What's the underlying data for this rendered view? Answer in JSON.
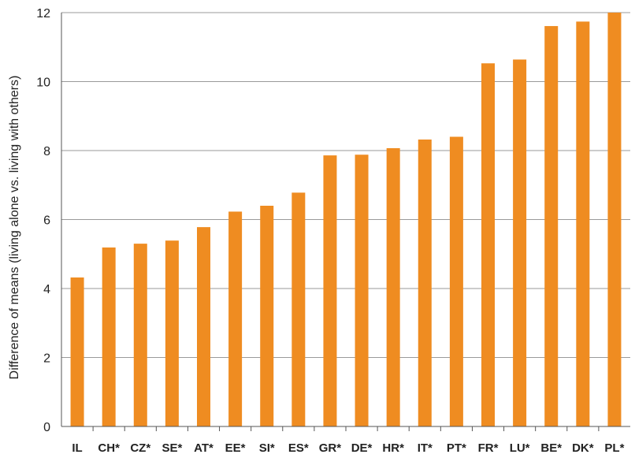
{
  "chart_data": {
    "type": "bar",
    "title": "",
    "xlabel": "",
    "ylabel": "Difference of means (living alone vs. living with others)",
    "ylim": [
      0,
      12
    ],
    "yticks": [
      0,
      2,
      4,
      6,
      8,
      10,
      12
    ],
    "grid": true,
    "categories": [
      "IL",
      "CH*",
      "CZ*",
      "SE*",
      "AT*",
      "EE*",
      "SI*",
      "ES*",
      "GR*",
      "DE*",
      "HR*",
      "IT*",
      "PT*",
      "FR*",
      "LU*",
      "BE*",
      "DK*",
      "PL*"
    ],
    "values": [
      4.32,
      5.19,
      5.3,
      5.39,
      5.78,
      6.23,
      6.4,
      6.78,
      7.86,
      7.88,
      8.07,
      8.32,
      8.4,
      10.53,
      10.64,
      11.61,
      11.74,
      12.0
    ],
    "bar_color": "#ef8c21",
    "grid_color": "#9a9a9a"
  }
}
